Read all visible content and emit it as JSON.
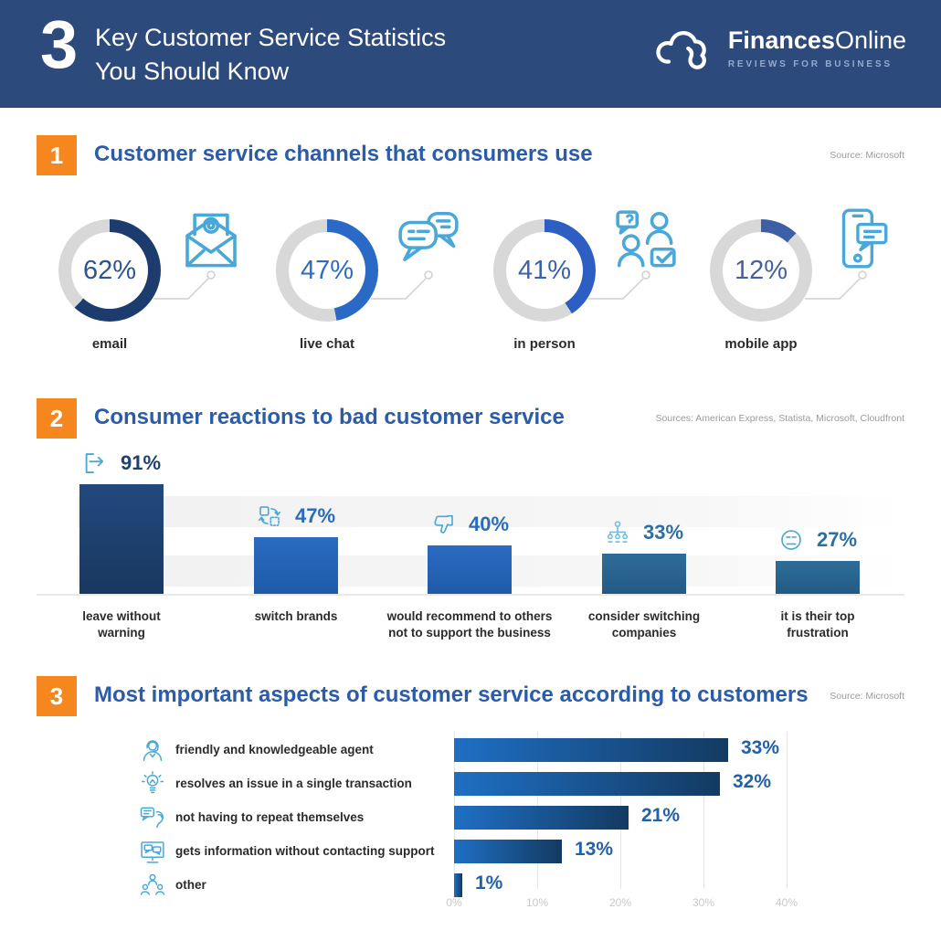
{
  "header": {
    "big_number": "3",
    "title_line1": "Key Customer Service Statistics",
    "title_line2": "You Should Know",
    "brand_bold": "Finances",
    "brand_regular": "Online",
    "tagline": "REVIEWS FOR BUSINESS"
  },
  "colors": {
    "header_bg": "#2c4a7c",
    "accent_orange": "#f6871f",
    "section_title_blue": "#2a5ca9",
    "icon_blue": "#49a8d8",
    "label_dark": "#2b2b2b",
    "source_gray": "#9b9b9b"
  },
  "chart_data": [
    {
      "type": "pie",
      "subtype": "donut-set",
      "badge": "1",
      "title": "Customer service channels that consumers use",
      "source": "Source: Microsoft",
      "track_color": "#d8d8d8",
      "items": [
        {
          "label": "email",
          "value": 62,
          "display": "62%",
          "arc_color": "#1d3c6e",
          "text_color": "#2d5591",
          "icon": "envelope-at-icon"
        },
        {
          "label": "live chat",
          "value": 47,
          "display": "47%",
          "arc_color": "#2a69c5",
          "text_color": "#2f6cc0",
          "icon": "chat-bubbles-icon"
        },
        {
          "label": "in person",
          "value": 41,
          "display": "41%",
          "arc_color": "#2d5ec3",
          "text_color": "#3b62ab",
          "icon": "people-question-icon"
        },
        {
          "label": "mobile app",
          "value": 12,
          "display": "12%",
          "arc_color": "#3d5fa6",
          "text_color": "#44619e",
          "icon": "phone-message-icon"
        }
      ]
    },
    {
      "type": "bar",
      "badge": "2",
      "title": "Consumer reactions to bad customer service",
      "source": "Sources: American Express, Statista, Microsoft, Cloudfront",
      "categories": [
        "leave without\nwarning",
        "switch brands",
        "would recommend to others\nnot to support the business",
        "consider switching\ncompanies",
        "it is their top\nfrustration"
      ],
      "values": [
        91,
        47,
        40,
        33,
        27
      ],
      "value_labels": [
        "91%",
        "47%",
        "40%",
        "33%",
        "27%"
      ],
      "value_colors": [
        "#1d4271",
        "#2a6cba",
        "#2a6cba",
        "#2d6fa0",
        "#2d6fa0"
      ],
      "bar_colors": [
        {
          "top": "#23497d",
          "bottom": "#18375f"
        },
        {
          "top": "#2a6cc2",
          "bottom": "#1f5aa8"
        },
        {
          "top": "#2a6cc2",
          "bottom": "#1f5aa8"
        },
        {
          "top": "#2e6d99",
          "bottom": "#235a84"
        },
        {
          "top": "#2e6d99",
          "bottom": "#235a84"
        }
      ],
      "icons": [
        "exit-icon",
        "switch-icon",
        "thumbs-down-icon",
        "hierarchy-icon",
        "annoyed-face-icon"
      ],
      "ylim": [
        0,
        100
      ],
      "grid": "horizontal-bands"
    },
    {
      "type": "bar",
      "subtype": "horizontal",
      "badge": "3",
      "title": "Most important aspects of customer service according to customers",
      "source": "Source: Microsoft",
      "categories": [
        "friendly and knowledgeable agent",
        "resolves an issue in a single transaction",
        "not having to repeat themselves",
        "gets information without contacting support",
        "other"
      ],
      "values": [
        33,
        32,
        21,
        13,
        1
      ],
      "value_labels": [
        "33%",
        "32%",
        "21%",
        "13%",
        "1%"
      ],
      "icons": [
        "agent-icon",
        "lightbulb-icon",
        "chat-ear-icon",
        "monitor-chat-icon",
        "people-group-icon"
      ],
      "xticks": [
        "0%",
        "10%",
        "20%",
        "30%",
        "40%"
      ],
      "xlim": [
        0,
        45
      ],
      "bar_color_left": "#1f6fc4",
      "bar_color_right": "#133a61",
      "grid": "vertical"
    }
  ]
}
